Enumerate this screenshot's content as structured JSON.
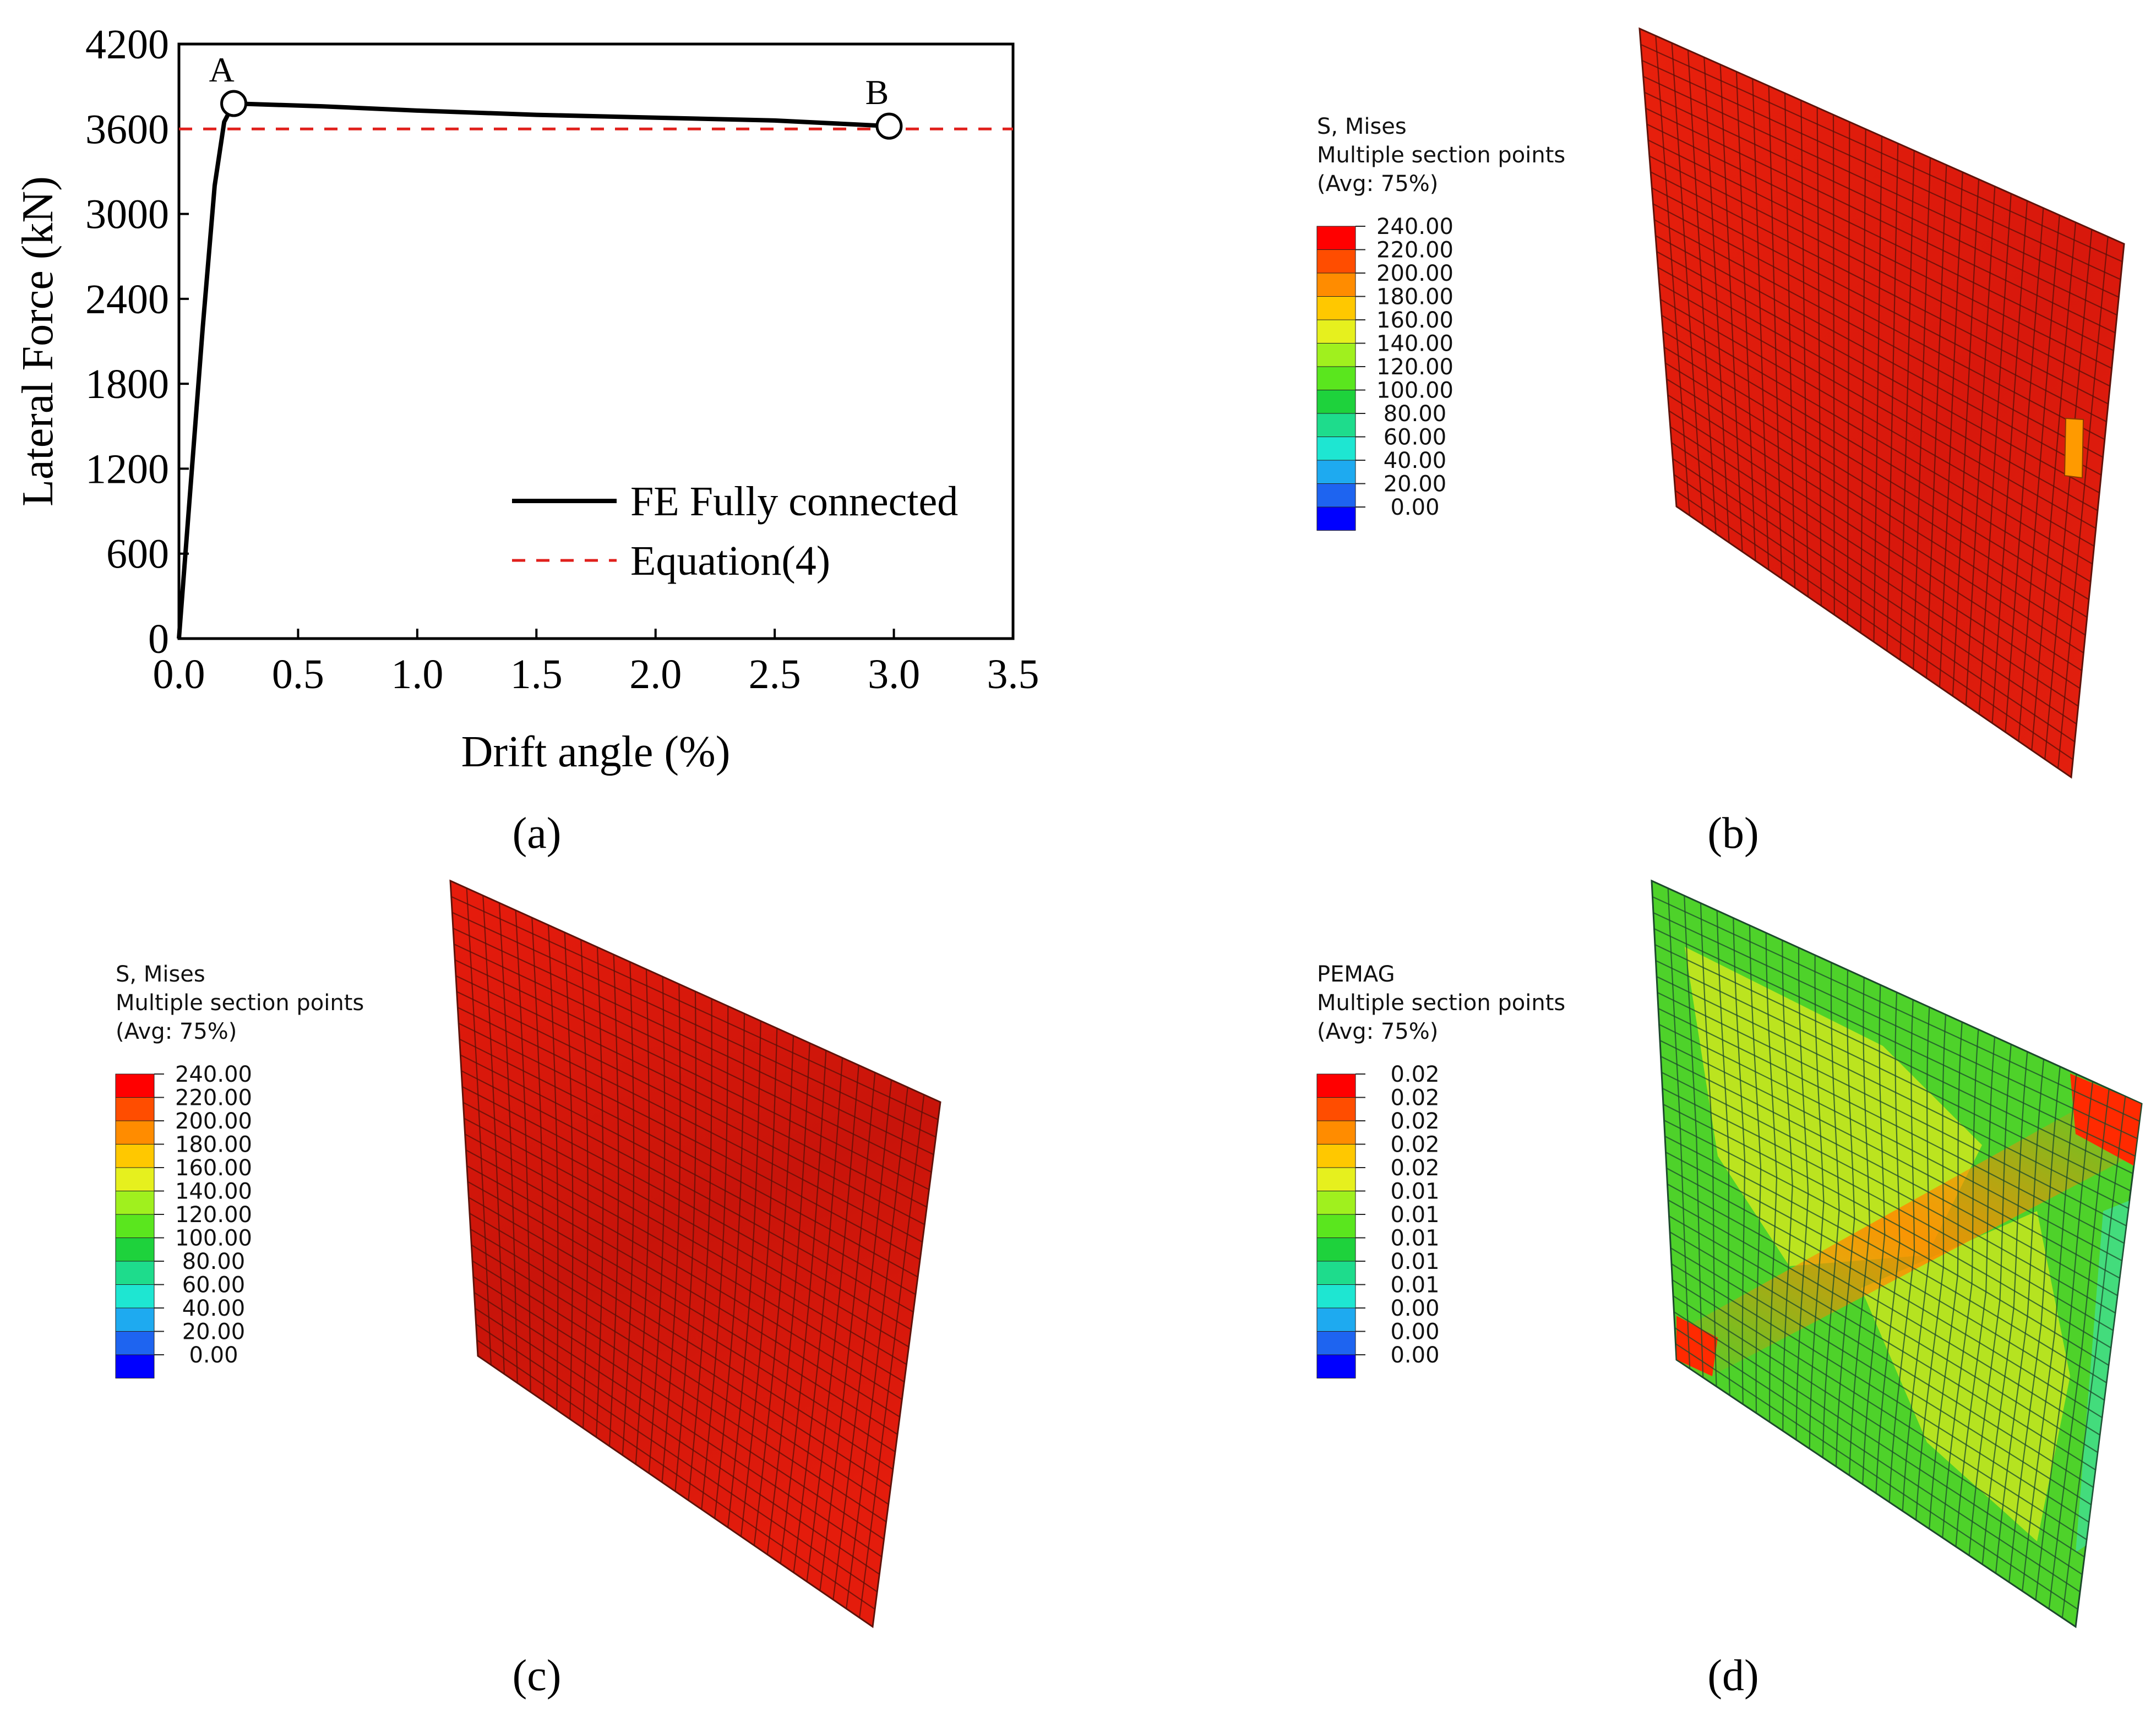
{
  "figure": {
    "panel_labels": [
      "(a)",
      "(b)",
      "(c)",
      "(d)"
    ]
  },
  "chart_data": [
    {
      "type": "line",
      "panel": "(a)",
      "xlabel": "Drift angle (%)",
      "ylabel": "Lateral Force (kN)",
      "xlim": [
        0,
        3.5
      ],
      "ylim": [
        0,
        4200
      ],
      "xticks": [
        0.0,
        0.5,
        1.0,
        1.5,
        2.0,
        2.5,
        3.0,
        3.5
      ],
      "xtick_labels": [
        "0.0",
        "0.5",
        "1.0",
        "1.5",
        "2.0",
        "2.5",
        "3.0",
        "3.5"
      ],
      "yticks": [
        0,
        600,
        1200,
        1800,
        2400,
        3000,
        3600,
        4200
      ],
      "ytick_labels": [
        "0",
        "600",
        "1200",
        "1800",
        "2400",
        "3000",
        "3600",
        "4200"
      ],
      "grid": false,
      "legend_position": "bottom-right",
      "series": [
        {
          "name": "FE Fully connected",
          "style": "solid",
          "color": "#000000",
          "x": [
            0.0,
            0.05,
            0.1,
            0.15,
            0.19,
            0.23,
            0.6,
            1.0,
            1.5,
            2.0,
            2.5,
            2.98
          ],
          "y": [
            0,
            1100,
            2200,
            3200,
            3650,
            3780,
            3760,
            3730,
            3700,
            3680,
            3660,
            3620
          ]
        },
        {
          "name": "Equation(4)",
          "style": "dashed",
          "color": "#e0201c",
          "x": [
            0.0,
            3.5
          ],
          "y": [
            3600,
            3600
          ]
        }
      ],
      "annotations": [
        {
          "label": "A",
          "x": 0.23,
          "y": 3780
        },
        {
          "label": "B",
          "x": 2.98,
          "y": 3620
        }
      ]
    },
    {
      "type": "heatmap",
      "panel": "(b)",
      "legend_title": [
        "S, Mises",
        "Multiple section points",
        "(Avg: 75%)"
      ],
      "legend_values": [
        "240.00",
        "220.00",
        "200.00",
        "180.00",
        "160.00",
        "140.00",
        "120.00",
        "100.00",
        "80.00",
        "60.00",
        "40.00",
        "20.00",
        "0.00"
      ]
    },
    {
      "type": "heatmap",
      "panel": "(c)",
      "legend_title": [
        "S, Mises",
        "Multiple section points",
        "(Avg: 75%)"
      ],
      "legend_values": [
        "240.00",
        "220.00",
        "200.00",
        "180.00",
        "160.00",
        "140.00",
        "120.00",
        "100.00",
        "80.00",
        "60.00",
        "40.00",
        "20.00",
        "0.00"
      ]
    },
    {
      "type": "heatmap",
      "panel": "(d)",
      "legend_title": [
        "PEMAG",
        "Multiple section points",
        "(Avg: 75%)"
      ],
      "legend_values": [
        "0.02",
        "0.02",
        "0.02",
        "0.02",
        "0.02",
        "0.01",
        "0.01",
        "0.01",
        "0.01",
        "0.01",
        "0.00",
        "0.00",
        "0.00"
      ]
    }
  ],
  "colors": {
    "legend_swatches": [
      "#ff0000",
      "#ff4d00",
      "#ff8c00",
      "#ffc800",
      "#e6f01e",
      "#a0f01e",
      "#5ae61e",
      "#1ed23c",
      "#1edc8c",
      "#1ee6d2",
      "#1eaaf0",
      "#1e64f0",
      "#0000ff"
    ],
    "mesh_red": "#e51a0c",
    "mesh_line": "#5a1008",
    "mesh_line_d": "#1c4a2c",
    "equation_red": "#e0201c"
  }
}
